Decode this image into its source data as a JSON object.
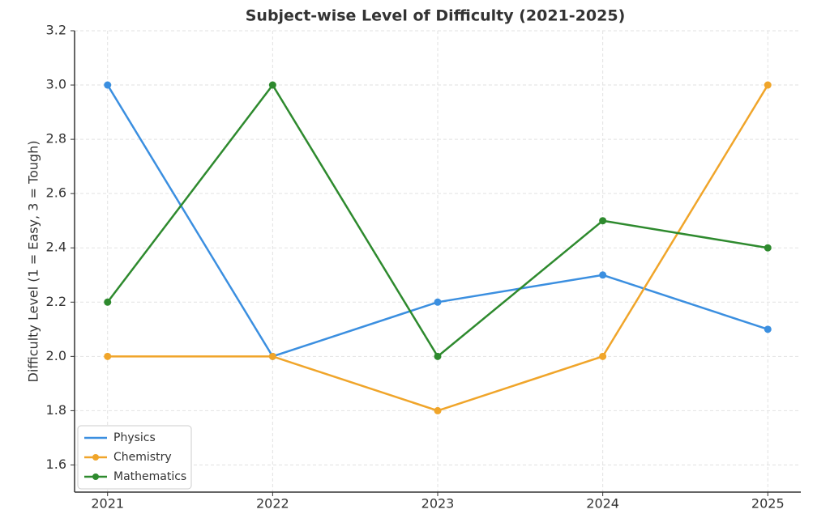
{
  "chart_data": {
    "type": "line",
    "title": "Subject-wise Level of Difficulty (2021-2025)",
    "y_label": "Difficulty Level (1 = Easy, 3 = Tough)",
    "x": [
      2021,
      2022,
      2023,
      2024,
      2025
    ],
    "series": [
      {
        "name": "Physics",
        "color": "#3b8fe0",
        "values": [
          3.0,
          2.0,
          2.2,
          2.3,
          2.1
        ]
      },
      {
        "name": "Chemistry",
        "color": "#f0a52a",
        "values": [
          2.0,
          2.0,
          1.8,
          2.0,
          3.0
        ]
      },
      {
        "name": "Mathematics",
        "color": "#2e8a2e",
        "values": [
          2.2,
          3.0,
          2.0,
          2.5,
          2.4
        ]
      }
    ],
    "xlim": [
      2020.8,
      2025.2
    ],
    "xticks": [
      2021,
      2022,
      2023,
      2024,
      2025
    ],
    "ylim": [
      1.5,
      3.2
    ],
    "yticks": [
      1.6,
      1.8,
      {
        "value": 2,
        "label": "2.0"
      },
      2.2,
      2.4,
      2.6,
      2.8,
      {
        "value": 3,
        "label": "3.0"
      },
      3.2
    ],
    "grid": true,
    "legend": "lower-left"
  }
}
